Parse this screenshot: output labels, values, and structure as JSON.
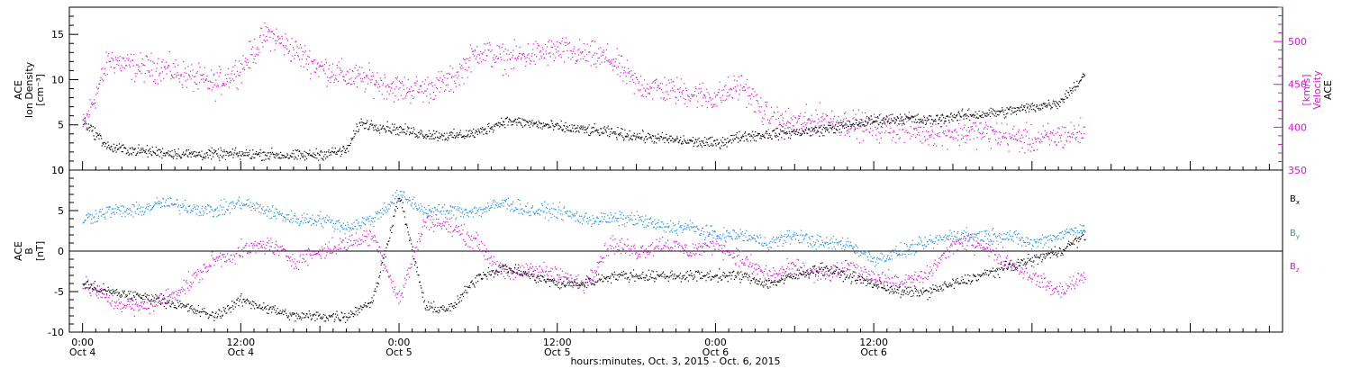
{
  "chart_data": [
    {
      "type": "scatter",
      "panel": "top",
      "ylabel_left": [
        "ACE",
        "Ion Density",
        "[cm⁻³]"
      ],
      "ylabel_right": [
        "ACE",
        "Velocity",
        "[km/s]"
      ],
      "left_ylim": [
        0,
        18
      ],
      "right_ylim": [
        350,
        540
      ],
      "left_ticks": [
        "0",
        "5",
        "10",
        "15"
      ],
      "left_tick_values": [
        0,
        5,
        10,
        15
      ],
      "right_ticks": [
        "350",
        "400",
        "450",
        "500"
      ],
      "right_tick_values": [
        350,
        400,
        450,
        500
      ],
      "series": [
        {
          "axis": "left",
          "color": "#000000",
          "t": [
            0,
            2,
            4,
            6,
            8,
            10,
            12,
            14,
            16,
            18,
            20,
            21,
            22,
            24,
            26,
            28,
            30,
            32,
            34,
            36,
            38,
            40,
            42,
            44,
            46,
            48,
            50,
            52,
            54,
            56,
            58,
            60,
            62,
            64,
            66,
            68,
            70,
            72,
            74,
            76
          ],
          "values": [
            5.5,
            2.5,
            2.2,
            2.0,
            1.8,
            1.8,
            1.8,
            1.8,
            1.6,
            1.8,
            2.2,
            5.2,
            5.0,
            4.5,
            4.0,
            3.8,
            4.2,
            5.5,
            5.2,
            4.8,
            4.5,
            4.2,
            3.8,
            3.5,
            3.2,
            3.0,
            3.8,
            4.0,
            4.2,
            4.5,
            5.0,
            5.5,
            5.8,
            5.5,
            6.0,
            6.2,
            6.5,
            7.0,
            7.5,
            10.5
          ]
        },
        {
          "axis": "right",
          "color": "#d614d6",
          "t": [
            0,
            2,
            4,
            6,
            8,
            10,
            12,
            14,
            16,
            18,
            20,
            22,
            24,
            26,
            28,
            30,
            32,
            34,
            36,
            38,
            40,
            42,
            44,
            46,
            48,
            50,
            52,
            54,
            56,
            58,
            60,
            62,
            64,
            66,
            68,
            70,
            72,
            74,
            76
          ],
          "values": [
            400,
            480,
            470,
            470,
            460,
            450,
            470,
            510,
            490,
            470,
            460,
            455,
            445,
            445,
            455,
            490,
            480,
            485,
            490,
            485,
            480,
            450,
            445,
            440,
            435,
            450,
            410,
            405,
            410,
            405,
            400,
            400,
            395,
            395,
            395,
            390,
            385,
            390,
            395
          ]
        }
      ]
    },
    {
      "type": "scatter",
      "panel": "bottom",
      "ylabel_left": [
        "ACE",
        "B",
        "[nT]"
      ],
      "ylim": [
        -10,
        10
      ],
      "ticks": [
        "-10",
        "-5",
        "0",
        "5",
        "10"
      ],
      "tick_values": [
        -10,
        -5,
        0,
        5,
        10
      ],
      "legend": [
        "Bx",
        "By",
        "Bz"
      ],
      "series": [
        {
          "name": "Bx",
          "color": "#000000",
          "t": [
            0,
            2,
            4,
            6,
            8,
            10,
            12,
            14,
            16,
            18,
            20,
            22,
            24,
            26,
            28,
            30,
            32,
            34,
            36,
            38,
            40,
            42,
            44,
            46,
            48,
            50,
            52,
            54,
            56,
            58,
            60,
            62,
            64,
            66,
            68,
            70,
            72,
            74,
            76
          ],
          "values": [
            -4,
            -5,
            -5.5,
            -6,
            -7,
            -8,
            -6,
            -7,
            -8,
            -8,
            -8,
            -6,
            7,
            -7,
            -7,
            -3,
            -2,
            -3,
            -4,
            -4,
            -3,
            -3,
            -3,
            -3,
            -3,
            -3,
            -4,
            -3,
            -2,
            -3,
            -4,
            -5,
            -5,
            -4,
            -3,
            -2,
            -1,
            0,
            2
          ]
        },
        {
          "name": "By",
          "color": "#1e90e6",
          "t": [
            0,
            2,
            4,
            6,
            8,
            10,
            12,
            14,
            16,
            18,
            20,
            22,
            24,
            26,
            28,
            30,
            32,
            34,
            36,
            38,
            40,
            42,
            44,
            46,
            48,
            50,
            52,
            54,
            56,
            58,
            60,
            62,
            64,
            66,
            68,
            70,
            72,
            74,
            76
          ],
          "values": [
            4,
            5,
            5,
            6,
            5.5,
            5,
            6,
            5,
            4,
            4,
            3,
            4,
            7,
            5,
            5,
            5,
            6,
            5,
            5,
            4,
            4,
            4,
            3,
            3,
            2,
            2,
            1,
            2,
            1,
            1,
            -1,
            0,
            1,
            2,
            2,
            2,
            1,
            2,
            3
          ]
        },
        {
          "name": "Bz",
          "color": "#d614d6",
          "t": [
            0,
            2,
            4,
            6,
            8,
            10,
            12,
            14,
            16,
            18,
            20,
            22,
            24,
            26,
            28,
            30,
            32,
            34,
            36,
            38,
            40,
            42,
            44,
            46,
            48,
            50,
            52,
            54,
            56,
            58,
            60,
            62,
            64,
            66,
            68,
            70,
            72,
            74,
            76
          ],
          "values": [
            -4,
            -6,
            -7,
            -6,
            -4,
            -1,
            0,
            1,
            -1,
            0,
            1,
            2,
            -6,
            4,
            3,
            1,
            -3,
            -2,
            -3,
            -4,
            1,
            0,
            1,
            0,
            1,
            -1,
            -3,
            -2,
            -3,
            -2,
            -3,
            -4,
            -3,
            1,
            1,
            -1,
            -3,
            -5,
            -3
          ]
        }
      ]
    }
  ],
  "x_axis": {
    "range_hours": [
      -1,
      91
    ],
    "title": "hours:minutes, Oct. 3, 2015 - Oct. 6, 2015",
    "major_ticks": [
      {
        "hour": 0,
        "time": "0:00",
        "date": "Oct 4"
      },
      {
        "hour": 12,
        "time": "12:00",
        "date": "Oct 4"
      },
      {
        "hour": 24,
        "time": "0:00",
        "date": "Oct 5"
      },
      {
        "hour": 36,
        "time": "12:00",
        "date": "Oct 5"
      },
      {
        "hour": 48,
        "time": "0:00",
        "date": "Oct 6"
      },
      {
        "hour": 60,
        "time": "12:00",
        "date": "Oct 6"
      }
    ]
  },
  "legend": {
    "bx": {
      "base": "B",
      "sub": "x",
      "color": "#000000"
    },
    "by": {
      "base": "B",
      "sub": "y",
      "color": "#1e90e6"
    },
    "bz": {
      "base": "B",
      "sub": "z",
      "color": "#d614d6"
    }
  }
}
